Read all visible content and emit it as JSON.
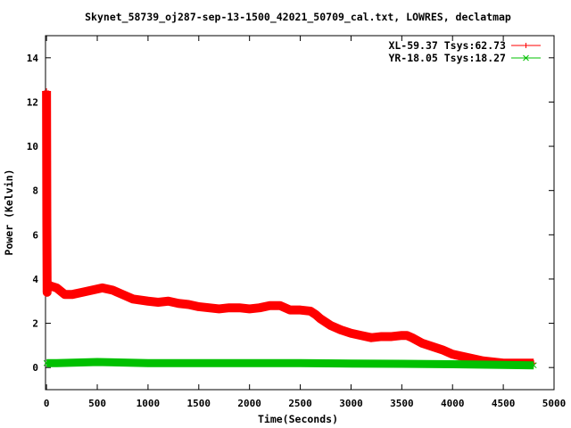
{
  "chart_data": {
    "type": "line",
    "title": "Skynet_58739_oj287-sep-13-1500_42021_50709_cal.txt, LOWRES, declatmap",
    "xlabel": "Time(Seconds)",
    "ylabel": "Power (Kelvin)",
    "xlim": [
      -10,
      5000
    ],
    "ylim": [
      -1,
      15
    ],
    "x_ticks": [
      0,
      500,
      1000,
      1500,
      2000,
      2500,
      3000,
      3500,
      4000,
      4500,
      5000
    ],
    "y_ticks": [
      0,
      2,
      4,
      6,
      8,
      10,
      12,
      14
    ],
    "x_tick_labels": [
      "0",
      "500",
      "1000",
      "1500",
      "2000",
      "2500",
      "3000",
      "3500",
      "4000",
      "4500",
      "5000"
    ],
    "y_tick_labels": [
      "0",
      "2",
      "4",
      "6",
      "8",
      "10",
      "12",
      "14"
    ],
    "grid": false,
    "legend_position": "top-right",
    "series": [
      {
        "name": "XL-59.37 Tsys:62.73",
        "color": "#ff0000",
        "marker": "plus",
        "x": [
          0,
          3,
          6,
          10,
          30,
          100,
          180,
          250,
          350,
          450,
          550,
          650,
          750,
          850,
          1000,
          1100,
          1200,
          1300,
          1400,
          1500,
          1600,
          1700,
          1800,
          1900,
          2000,
          2100,
          2200,
          2300,
          2400,
          2500,
          2600,
          2650,
          2700,
          2800,
          2900,
          3000,
          3100,
          3200,
          3300,
          3400,
          3500,
          3550,
          3600,
          3700,
          3800,
          3900,
          4000,
          4100,
          4200,
          4300,
          4400,
          4500,
          4600,
          4700,
          4800
        ],
        "y": [
          12.5,
          6.7,
          3.4,
          3.8,
          3.7,
          3.6,
          3.3,
          3.3,
          3.4,
          3.5,
          3.6,
          3.5,
          3.3,
          3.1,
          3.0,
          2.95,
          3.0,
          2.9,
          2.85,
          2.75,
          2.7,
          2.65,
          2.7,
          2.7,
          2.65,
          2.7,
          2.8,
          2.8,
          2.6,
          2.6,
          2.55,
          2.4,
          2.2,
          1.9,
          1.7,
          1.55,
          1.45,
          1.35,
          1.4,
          1.4,
          1.45,
          1.45,
          1.35,
          1.1,
          0.95,
          0.8,
          0.6,
          0.5,
          0.4,
          0.3,
          0.25,
          0.2,
          0.2,
          0.2,
          0.2
        ]
      },
      {
        "name": "YR-18.05 Tsys:18.27",
        "color": "#00c000",
        "marker": "x",
        "x": [
          0,
          100,
          500,
          1000,
          1500,
          2000,
          2500,
          3000,
          3500,
          4000,
          4500,
          4800
        ],
        "y": [
          0.2,
          0.2,
          0.25,
          0.2,
          0.2,
          0.2,
          0.2,
          0.18,
          0.17,
          0.15,
          0.12,
          0.1
        ]
      }
    ]
  }
}
